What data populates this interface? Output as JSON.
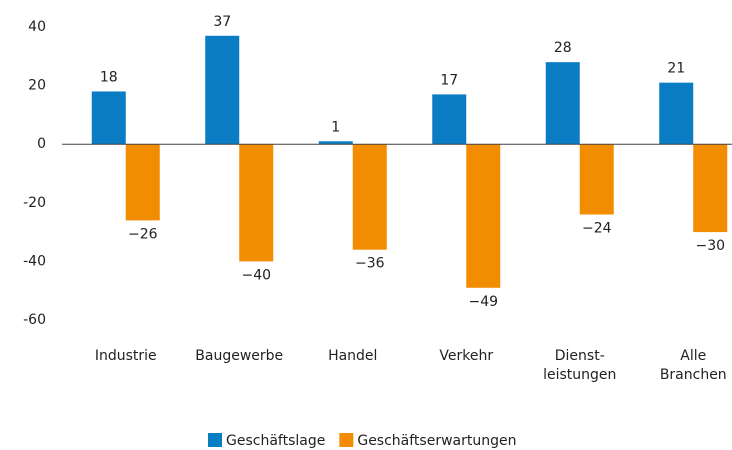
{
  "chart_data": {
    "type": "bar",
    "categories": [
      "Industrie",
      "Baugewerbe",
      "Handel",
      "Verkehr",
      "Dienst-\nleistungen",
      "Alle\nBranchen"
    ],
    "series": [
      {
        "name": "Geschäftslage",
        "color": "#0a7cc4",
        "values": [
          18,
          37,
          1,
          17,
          28,
          21
        ]
      },
      {
        "name": "Geschäftserwartungen",
        "color": "#f28c00",
        "values": [
          -26,
          -40,
          -36,
          -49,
          -24,
          -30
        ],
        "value_labels": [
          "−26",
          "−40",
          "−36",
          "−49",
          "−24",
          "−30"
        ]
      }
    ],
    "ylim": [
      -60,
      40
    ],
    "yticks": [
      -60,
      -40,
      -20,
      0,
      20,
      40
    ],
    "grid": false,
    "legend": "bottom"
  }
}
